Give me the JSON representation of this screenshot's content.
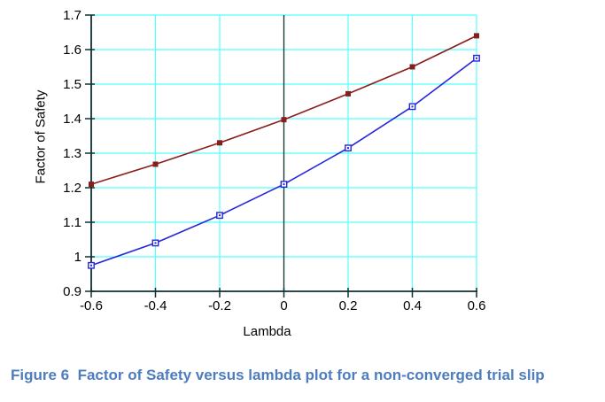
{
  "figure": {
    "caption": "Figure 6  Factor of Safety versus lambda plot for a non-converged trial slip",
    "caption_color": "#4E7DBF"
  },
  "chart_data": {
    "type": "line",
    "title": "",
    "xlabel": "Lambda",
    "ylabel": "Factor of Safety",
    "x": [
      -0.6,
      -0.4,
      -0.2,
      0,
      0.2,
      0.4,
      0.6
    ],
    "series": [
      {
        "name": "dark-red-series",
        "color": "#8B1D1D",
        "marker": "filled-square",
        "values": [
          1.21,
          1.268,
          1.33,
          1.397,
          1.472,
          1.55,
          1.64
        ]
      },
      {
        "name": "blue-series",
        "color": "#2626DB",
        "marker": "open-square",
        "values": [
          0.975,
          1.04,
          1.12,
          1.21,
          1.315,
          1.435,
          1.575
        ]
      }
    ],
    "xlim": [
      -0.6,
      0.6
    ],
    "ylim": [
      0.9,
      1.7
    ],
    "xticks": {
      "values": [
        -0.6,
        -0.4,
        -0.2,
        0,
        0.2,
        0.4,
        0.6
      ],
      "labels": [
        "-0.6",
        "-0.4",
        "-0.2",
        "0",
        "0.2",
        "0.4",
        "0.6"
      ]
    },
    "yticks": {
      "values": [
        0.9,
        1.0,
        1.1,
        1.2,
        1.3,
        1.4,
        1.5,
        1.6,
        1.7
      ],
      "labels": [
        "0.9",
        "1",
        "1.1",
        "1.2",
        "1.3",
        "1.4",
        "1.5",
        "1.6",
        "1.7"
      ]
    },
    "grid": {
      "on": true,
      "color": "#55FFFF",
      "zero_line_color": "#0E3030"
    },
    "axis_color": "#0E3030",
    "legend_position": "none"
  }
}
